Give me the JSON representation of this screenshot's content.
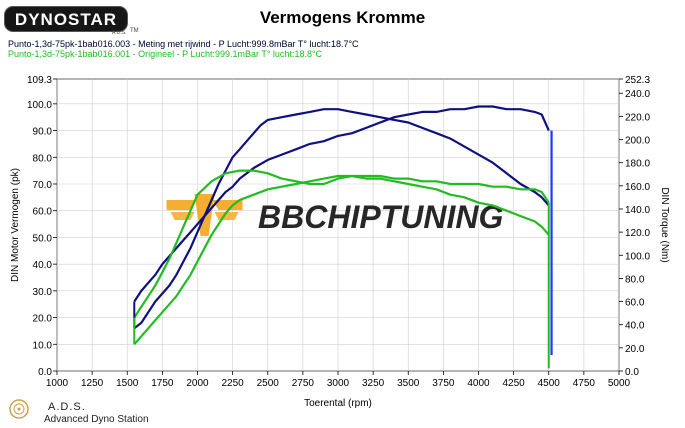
{
  "header": {
    "logo_text": "DYNOSTAR",
    "logo_sub": "A.D.S.",
    "logo_tm": "TM",
    "title": "Vermogens Kromme",
    "runs": [
      "Punto-1,3d-75pk-1bab016.003 - Meting met rijwind  - P Lucht:999.8mBar T° lucht:18.7°C",
      "Punto-1,3d-75pk-1bab016.001 - Origineel  - P Lucht:999.1mBar T° lucht:18.8°C"
    ]
  },
  "watermark": {
    "text": "BBCHIPTUNING",
    "accent_color": "#f4a51c"
  },
  "footer": {
    "title": "A.D.S.",
    "subtitle": "Advanced Dyno Station"
  },
  "colors": {
    "tuned": "#101080",
    "original": "#22bb22",
    "torque_spike": "#1a3aff"
  },
  "chart_data": {
    "type": "line",
    "title": "Vermogens Kromme",
    "xlabel": "Toerental (rpm)",
    "ylabel_left": "DIN Motor Vermogen (pk)",
    "ylabel_right": "DIN Torque (Nm)",
    "xlim": [
      1000,
      5000
    ],
    "ylim_left": [
      0,
      109.3
    ],
    "ylim_right": [
      0,
      252.3
    ],
    "x_ticks": [
      "1000",
      "1250",
      "1500",
      "1750",
      "2000",
      "2250",
      "2500",
      "2750",
      "3000",
      "3250",
      "3500",
      "3750",
      "4000",
      "4250",
      "4500",
      "4750",
      "5000"
    ],
    "left_ticks": [
      "0.0",
      "10.0",
      "20.0",
      "30.0",
      "40.0",
      "50.0",
      "60.0",
      "70.0",
      "80.0",
      "90.0",
      "100.0",
      "109.3"
    ],
    "right_ticks": [
      "0.0",
      "20.0",
      "40.0",
      "60.0",
      "80.0",
      "100.0",
      "120.0",
      "140.0",
      "160.0",
      "180.0",
      "200.0",
      "220.0",
      "240.0",
      "252.3"
    ],
    "grid": true,
    "series": [
      {
        "axis": "left",
        "group": "tuned",
        "x": [
          1550,
          1600,
          1650,
          1700,
          1750,
          1800,
          1850,
          1900,
          1950,
          2000,
          2050,
          2100,
          2150,
          2200,
          2250,
          2300,
          2350,
          2400,
          2450,
          2500,
          2600,
          2700,
          2800,
          2900,
          3000,
          3100,
          3200,
          3300,
          3400,
          3500,
          3600,
          3700,
          3800,
          3900,
          4000,
          4100,
          4200,
          4300,
          4400,
          4450,
          4500
        ],
        "y": [
          16,
          18,
          22,
          26,
          29,
          32,
          36,
          41,
          46,
          52,
          58,
          64,
          70,
          75,
          80,
          83,
          86,
          89,
          92,
          94,
          95,
          96,
          97,
          98,
          98,
          97,
          96,
          95,
          94,
          93,
          91,
          89,
          87,
          84,
          81,
          78,
          74,
          70,
          67,
          65,
          62
        ]
      },
      {
        "axis": "left",
        "group": "tuned",
        "x": [
          1550,
          1600,
          1650,
          1700,
          1750,
          1800,
          1850,
          1900,
          1950,
          2000,
          2050,
          2100,
          2150,
          2200,
          2250,
          2300,
          2400,
          2500,
          2600,
          2700,
          2800,
          2900,
          3000,
          3100,
          3200,
          3300,
          3400,
          3500,
          3600,
          3700,
          3800,
          3900,
          4000,
          4100,
          4200,
          4300,
          4400,
          4450,
          4500
        ],
        "y": [
          26,
          30,
          33,
          36,
          40,
          43,
          46,
          49,
          52,
          55,
          58,
          61,
          64,
          67,
          69,
          72,
          76,
          79,
          81,
          83,
          85,
          86,
          88,
          89,
          91,
          93,
          95,
          96,
          97,
          97,
          98,
          98,
          99,
          99,
          98,
          98,
          97,
          96,
          90
        ]
      },
      {
        "axis": "left",
        "group": "original",
        "x": [
          1550,
          1600,
          1650,
          1700,
          1750,
          1800,
          1850,
          1900,
          1950,
          2000,
          2050,
          2100,
          2150,
          2200,
          2250,
          2300,
          2400,
          2500,
          2600,
          2700,
          2800,
          2900,
          3000,
          3100,
          3200,
          3300,
          3400,
          3500,
          3600,
          3700,
          3800,
          3900,
          4000,
          4100,
          4200,
          4300,
          4400,
          4450,
          4500
        ],
        "y": [
          10,
          13,
          16,
          19,
          22,
          25,
          28,
          32,
          36,
          41,
          46,
          51,
          55,
          59,
          62,
          64,
          66,
          68,
          69,
          70,
          71,
          72,
          73,
          73,
          72,
          72,
          71,
          70,
          69,
          68,
          66,
          65,
          63,
          62,
          60,
          58,
          56,
          54,
          51
        ]
      },
      {
        "axis": "left",
        "group": "original",
        "x": [
          1550,
          1600,
          1650,
          1700,
          1750,
          1800,
          1850,
          1900,
          1950,
          2000,
          2100,
          2200,
          2300,
          2400,
          2500,
          2600,
          2700,
          2800,
          2900,
          3000,
          3100,
          3200,
          3300,
          3400,
          3500,
          3600,
          3700,
          3800,
          3900,
          4000,
          4100,
          4200,
          4300,
          4400,
          4450,
          4500
        ],
        "y": [
          20,
          24,
          28,
          32,
          37,
          42,
          48,
          54,
          60,
          66,
          71,
          74,
          75,
          75,
          74,
          72,
          71,
          70,
          70,
          72,
          73,
          73,
          73,
          72,
          72,
          71,
          71,
          70,
          70,
          70,
          69,
          69,
          68,
          68,
          67,
          63
        ]
      }
    ]
  }
}
